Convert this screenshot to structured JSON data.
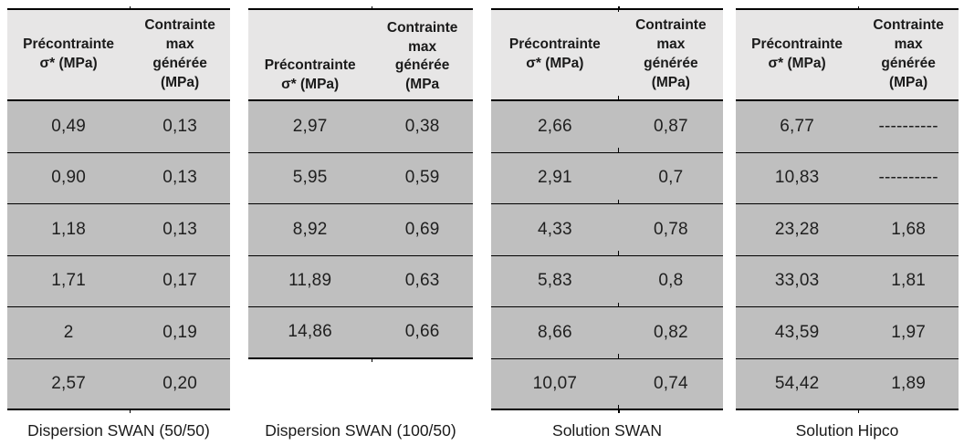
{
  "colors": {
    "header_bg": "#e7e6e6",
    "row_bg": "#bfbfbf",
    "border": "#000000",
    "text": "#1f1f1f"
  },
  "tables": [
    {
      "caption": "Dispersion SWAN (50/50)",
      "header": {
        "col1": "Précontrainte\nσ* (MPa)",
        "col2": "Contrainte\nmax\ngénérée\n(MPa)"
      },
      "rows": [
        [
          "0,49",
          "0,13"
        ],
        [
          "0,90",
          "0,13"
        ],
        [
          "1,18",
          "0,13"
        ],
        [
          "1,71",
          "0,17"
        ],
        [
          "2",
          "0,19"
        ],
        [
          "2,57",
          "0,20"
        ]
      ]
    },
    {
      "caption": "Dispersion SWAN (100/50)",
      "header": {
        "col1": "Précontrainte\nσ* (MPa)",
        "col2": "Contrainte\nmax\ngénérée\n(MPa"
      },
      "rows": [
        [
          "2,97",
          "0,38"
        ],
        [
          "5,95",
          "0,59"
        ],
        [
          "8,92",
          "0,69"
        ],
        [
          "11,89",
          "0,63"
        ],
        [
          "14,86",
          "0,66"
        ]
      ]
    },
    {
      "caption": "Solution SWAN",
      "header": {
        "col1": "Précontrainte\nσ* (MPa)",
        "col2": "Contrainte\nmax\ngénérée\n(MPa)"
      },
      "rows": [
        [
          "2,66",
          "0,87"
        ],
        [
          "2,91",
          "0,7"
        ],
        [
          "4,33",
          "0,78"
        ],
        [
          "5,83",
          "0,8"
        ],
        [
          "8,66",
          "0,82"
        ],
        [
          "10,07",
          "0,74"
        ]
      ]
    },
    {
      "caption": "Solution Hipco",
      "header": {
        "col1": "Précontrainte\nσ* (MPa)",
        "col2": "Contrainte\nmax\ngénérée\n(MPa)"
      },
      "rows": [
        [
          "6,77",
          "----------"
        ],
        [
          "10,83",
          "----------"
        ],
        [
          "23,28",
          "1,68"
        ],
        [
          "33,03",
          "1,81"
        ],
        [
          "43,59",
          "1,97"
        ],
        [
          "54,42",
          "1,89"
        ]
      ]
    }
  ]
}
